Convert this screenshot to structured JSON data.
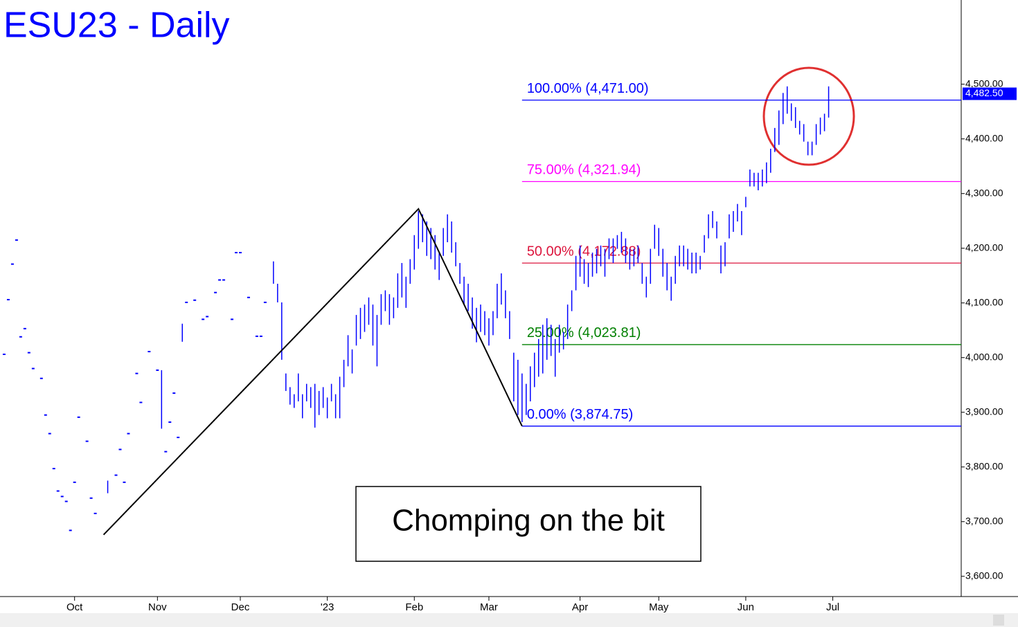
{
  "chart_data": {
    "type": "ohlc",
    "title": "ESU23 - Daily",
    "annotation": "Chomping on the bit",
    "color": "#0000ff",
    "xlim": [
      0,
      232
    ],
    "xticks": [
      {
        "value": 18,
        "label": "Oct"
      },
      {
        "value": 38,
        "label": "Nov"
      },
      {
        "value": 58,
        "label": "Dec"
      },
      {
        "value": 79,
        "label": "'23"
      },
      {
        "value": 100,
        "label": "Feb"
      },
      {
        "value": 118,
        "label": "Mar"
      },
      {
        "value": 140,
        "label": "Apr"
      },
      {
        "value": 159,
        "label": "May"
      },
      {
        "value": 180,
        "label": "Jun"
      },
      {
        "value": 201,
        "label": "Jul"
      }
    ],
    "ylim": [
      3563,
      4654
    ],
    "yticks": [
      {
        "value": 3600,
        "label": "3,600.00"
      },
      {
        "value": 3700,
        "label": "3,700.00"
      },
      {
        "value": 3800,
        "label": "3,800.00"
      },
      {
        "value": 3900,
        "label": "3,900.00"
      },
      {
        "value": 4000,
        "label": "4,000.00"
      },
      {
        "value": 4100,
        "label": "4,100.00"
      },
      {
        "value": 4200,
        "label": "4,200.00"
      },
      {
        "value": 4300,
        "label": "4,300.00"
      },
      {
        "value": 4400,
        "label": "4,400.00"
      },
      {
        "value": 4500,
        "label": "4,500.00"
      }
    ],
    "last_price": {
      "value": 4482.5,
      "label": "4,482.50"
    },
    "fib_start": 126,
    "fib_levels": [
      {
        "label": "100.00% (4,471.00)",
        "value": 4471,
        "color": "#0000ff"
      },
      {
        "label": "75.00% (4,321.94)",
        "value": 4321.94,
        "color": "#ff00ff"
      },
      {
        "label": "50.00% (4,172.88)",
        "value": 4172.88,
        "color": "#dc143c"
      },
      {
        "label": "25.00% (4,023.81)",
        "value": 4023.81,
        "color": "#008000"
      },
      {
        "label": "0.00% (3,874.75)",
        "value": 3874.75,
        "color": "#0000ff"
      }
    ],
    "zigzag": {
      "x": [
        25,
        101,
        126
      ],
      "y": [
        3676,
        4272,
        3874.75
      ]
    },
    "x": [
      1,
      2,
      3,
      4,
      5,
      6,
      7,
      8,
      10,
      11,
      12,
      13,
      14,
      15,
      16,
      17,
      18,
      19,
      21,
      22,
      23,
      26,
      28,
      29,
      30,
      31,
      33,
      34,
      36,
      38,
      39,
      40,
      41,
      42,
      43,
      44,
      45,
      47,
      49,
      50,
      52,
      53,
      54,
      56,
      57,
      58,
      60,
      62,
      63,
      64,
      66,
      67,
      68,
      69,
      70,
      71,
      72,
      73,
      74,
      75,
      76,
      77,
      78,
      79,
      80,
      81,
      82,
      83,
      84,
      85,
      86,
      87,
      88,
      89,
      90,
      91,
      92,
      93,
      94,
      95,
      96,
      97,
      98,
      99,
      100,
      101,
      102,
      103,
      104,
      105,
      106,
      107,
      108,
      109,
      110,
      111,
      112,
      113,
      114,
      115,
      116,
      117,
      118,
      119,
      120,
      121,
      122,
      123,
      124,
      125,
      126,
      127,
      128,
      129,
      130,
      131,
      132,
      133,
      134,
      135,
      136,
      137,
      138,
      139,
      140,
      141,
      142,
      143,
      144,
      145,
      146,
      147,
      148,
      149,
      150,
      151,
      152,
      153,
      154,
      155,
      156,
      157,
      158,
      159,
      160,
      161,
      162,
      163,
      164,
      165,
      166,
      167,
      168,
      169,
      170,
      171,
      172,
      173,
      174,
      175,
      176,
      177,
      178,
      179,
      180,
      181,
      182,
      183,
      184,
      185,
      186,
      187,
      188,
      189,
      190,
      191,
      192,
      193,
      194,
      195,
      196,
      197,
      198,
      199,
      200
    ],
    "high": [
      4006,
      4106,
      4171,
      4215,
      4038,
      4053,
      4009,
      3980,
      3962,
      3895,
      3861,
      3797,
      3756,
      3746,
      3737,
      3684,
      3772,
      3891,
      3847,
      3743,
      3715,
      3775,
      3785,
      3832,
      3772,
      3861,
      3971,
      3918,
      4011,
      3977,
      3977,
      3828,
      3882,
      3935,
      3854,
      4062,
      4101,
      4105,
      4070,
      4075,
      4119,
      4142,
      4142,
      4070,
      4192,
      4192,
      4110,
      4039,
      4039,
      4101,
      4176,
      4135,
      4101,
      3971,
      3946,
      3933,
      3971,
      3933,
      3952,
      3946,
      3952,
      3939,
      3946,
      3927,
      3952,
      3933,
      3965,
      3996,
      4041,
      4015,
      4078,
      4091,
      4097,
      4110,
      4097,
      4078,
      4116,
      4123,
      4116,
      4110,
      4154,
      4173,
      4148,
      4180,
      4224,
      4268,
      4262,
      4249,
      4237,
      4224,
      4192,
      4237,
      4262,
      4249,
      4211,
      4173,
      4148,
      4135,
      4110,
      4091,
      4097,
      4085,
      4072,
      4085,
      4135,
      4154,
      4123,
      4085,
      4009,
      3996,
      3971,
      3952,
      3984,
      4009,
      4034,
      4060,
      4072,
      4060,
      4034,
      4060,
      4047,
      4097,
      4123,
      4186,
      4205,
      4180,
      4173,
      4192,
      4199,
      4205,
      4199,
      4218,
      4218,
      4224,
      4230,
      4218,
      4199,
      4199,
      4205,
      4173,
      4148,
      4199,
      4243,
      4237,
      4199,
      4173,
      4148,
      4186,
      4205,
      4205,
      4199,
      4192,
      4192,
      4186,
      4224,
      4262,
      4268,
      4249,
      4205,
      4211,
      4262,
      4268,
      4281,
      4268,
      4294,
      4344,
      4338,
      4338,
      4344,
      4357,
      4382,
      4420,
      4452,
      4484,
      4496,
      4465,
      4458,
      4433,
      4427,
      4395,
      4395,
      4427,
      4439,
      4446,
      4496
    ],
    "low": [
      4006,
      4106,
      4171,
      4215,
      4038,
      4053,
      4009,
      3980,
      3962,
      3895,
      3861,
      3797,
      3756,
      3746,
      3737,
      3684,
      3772,
      3891,
      3847,
      3743,
      3715,
      3752,
      3785,
      3832,
      3772,
      3861,
      3971,
      3918,
      4011,
      3977,
      3870,
      3828,
      3882,
      3935,
      3854,
      4029,
      4101,
      4105,
      4070,
      4075,
      4119,
      4142,
      4142,
      4070,
      4192,
      4192,
      4110,
      4039,
      4039,
      4101,
      4135,
      4101,
      3996,
      3939,
      3914,
      3908,
      3920,
      3889,
      3920,
      3908,
      3872,
      3895,
      3908,
      3889,
      3920,
      3889,
      3889,
      3946,
      3984,
      3971,
      4022,
      4034,
      4047,
      4060,
      4022,
      3984,
      4060,
      4085,
      4060,
      4072,
      4091,
      4110,
      4091,
      4135,
      4161,
      4199,
      4211,
      4186,
      4180,
      4161,
      4142,
      4186,
      4211,
      4192,
      4167,
      4135,
      4097,
      4085,
      4053,
      4028,
      4047,
      4041,
      4022,
      4041,
      4072,
      4097,
      4072,
      4034,
      3920,
      3895,
      3882,
      3895,
      3920,
      3946,
      3965,
      3971,
      3996,
      4003,
      3965,
      4009,
      4015,
      4034,
      4085,
      4123,
      4148,
      4135,
      4129,
      4148,
      4154,
      4167,
      4148,
      4180,
      4173,
      4199,
      4192,
      4173,
      4161,
      4167,
      4173,
      4135,
      4110,
      4135,
      4199,
      4186,
      4148,
      4123,
      4104,
      4135,
      4167,
      4167,
      4161,
      4154,
      4154,
      4161,
      4192,
      4218,
      4237,
      4218,
      4154,
      4167,
      4218,
      4230,
      4249,
      4224,
      4275,
      4313,
      4313,
      4306,
      4313,
      4319,
      4338,
      4376,
      4389,
      4427,
      4446,
      4433,
      4420,
      4408,
      4395,
      4370,
      4370,
      4389,
      4408,
      4414,
      4439
    ]
  }
}
